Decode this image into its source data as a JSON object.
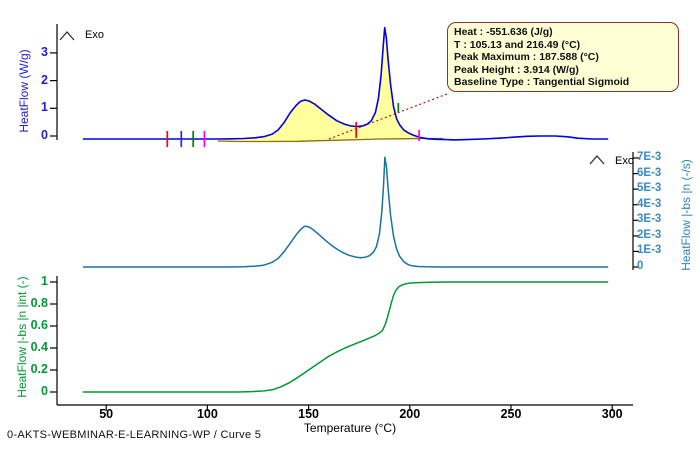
{
  "caption": "0-AKTS-WEBMINAR-E-LEARNING-WP / Curve 5",
  "exo": {
    "top": "Exo",
    "mid": "Exo"
  },
  "annotation": {
    "lines": [
      "Heat :  -551.636 (J/g)",
      "T : 105.13 and 216.49 (°C)",
      "Peak Maximum :  187.588 (°C)",
      "Peak Height :  3.914 (W/g)",
      "Baseline Type :  Tangential Sigmoid"
    ]
  },
  "colors": {
    "dsc_axis": "#2222cc",
    "rate_axis": "#3a8cc0",
    "integral_axis": "#009933",
    "x_axis": "#000000",
    "fill": "#ffff9e",
    "leader": "#bb0000",
    "annotation_bg": "#ffffd6",
    "annotation_border": "#8b2f2f"
  },
  "x_axis": {
    "label": "Temperature (°C)",
    "ticks": [
      50,
      100,
      150,
      200,
      250,
      300
    ],
    "range": [
      38.5,
      298
    ]
  },
  "chart_data": [
    {
      "type": "line",
      "name": "dsc-heatflow",
      "ylabel": "HeatFlow (W/g)",
      "color": "#0000e0",
      "ylim": [
        -0.45,
        4.05
      ],
      "yticks": [
        {
          "label": "0",
          "v": 0
        },
        {
          "label": "1",
          "v": 1
        },
        {
          "label": "2",
          "v": 2
        },
        {
          "label": "3",
          "v": 3
        }
      ],
      "peak": {
        "heat_J_per_g": -551.636,
        "t_onset": 105.13,
        "t_end": 216.49,
        "peak_maximum_C": 187.588,
        "peak_height_W_per_g": 3.914,
        "baseline_type": "Tangential Sigmoid"
      },
      "fill_region": {
        "from": 105.13,
        "to": 216.49
      },
      "baseline": {
        "color": "#8f7000",
        "points": [
          [
            105.13,
            -0.18
          ],
          [
            115,
            -0.2
          ],
          [
            130,
            -0.2
          ],
          [
            145,
            -0.19
          ],
          [
            155,
            -0.17
          ],
          [
            165,
            -0.15
          ],
          [
            175,
            -0.13
          ],
          [
            185,
            -0.11
          ],
          [
            195,
            -0.1
          ],
          [
            205,
            -0.09
          ],
          [
            216.49,
            -0.09
          ]
        ]
      },
      "markers": [
        {
          "t": 80.2,
          "v1": -0.4,
          "v2": 0.18,
          "color": "#ff0000"
        },
        {
          "t": 87.1,
          "v1": -0.4,
          "v2": 0.18,
          "color": "#2222ff"
        },
        {
          "t": 93.0,
          "v1": -0.4,
          "v2": 0.18,
          "color": "#008000"
        },
        {
          "t": 98.5,
          "v1": -0.4,
          "v2": 0.18,
          "color": "#ff00ff"
        },
        {
          "t": 173.5,
          "v1": -0.07,
          "v2": 0.51,
          "color": "#ff0000"
        },
        {
          "t": 204.6,
          "v1": -0.18,
          "v2": 0.22,
          "color": "#ff00ff"
        },
        {
          "t": 194.3,
          "v1": 0.87,
          "v2": 1.19,
          "color": "#008000"
        }
      ],
      "series": [
        [
          38.5,
          -0.11
        ],
        [
          60,
          -0.11
        ],
        [
          80,
          -0.11
        ],
        [
          95,
          -0.11
        ],
        [
          105,
          -0.11
        ],
        [
          112,
          -0.1
        ],
        [
          118,
          -0.09
        ],
        [
          124,
          -0.06
        ],
        [
          128,
          -0.02
        ],
        [
          132,
          0.07
        ],
        [
          135,
          0.22
        ],
        [
          138,
          0.5
        ],
        [
          141,
          0.85
        ],
        [
          144,
          1.12
        ],
        [
          146,
          1.25
        ],
        [
          148,
          1.3
        ],
        [
          150,
          1.27
        ],
        [
          153,
          1.15
        ],
        [
          156,
          0.98
        ],
        [
          160,
          0.75
        ],
        [
          164,
          0.55
        ],
        [
          168,
          0.42
        ],
        [
          171,
          0.36
        ],
        [
          174,
          0.34
        ],
        [
          177,
          0.37
        ],
        [
          179,
          0.43
        ],
        [
          181,
          0.55
        ],
        [
          183,
          0.85
        ],
        [
          184.5,
          1.35
        ],
        [
          185.8,
          2.2
        ],
        [
          186.8,
          3.2
        ],
        [
          187.6,
          3.91
        ],
        [
          188.4,
          3.55
        ],
        [
          189.3,
          2.75
        ],
        [
          190.5,
          1.85
        ],
        [
          192,
          1.05
        ],
        [
          193.5,
          0.62
        ],
        [
          195,
          0.4
        ],
        [
          197,
          0.22
        ],
        [
          199.5,
          0.1
        ],
        [
          202,
          0.02
        ],
        [
          205,
          -0.05
        ],
        [
          209,
          -0.1
        ],
        [
          213,
          -0.12
        ],
        [
          218,
          -0.13
        ],
        [
          222,
          -0.14
        ],
        [
          228,
          -0.13
        ],
        [
          236,
          -0.11
        ],
        [
          244,
          -0.08
        ],
        [
          252,
          -0.04
        ],
        [
          258,
          -0.01
        ],
        [
          264,
          0.0
        ],
        [
          272,
          0.0
        ],
        [
          278,
          -0.03
        ],
        [
          283,
          -0.08
        ],
        [
          290,
          -0.11
        ],
        [
          298,
          -0.11
        ]
      ]
    },
    {
      "type": "line",
      "name": "rate-normalized",
      "ylabel": "HeatFlow |-bs |n (-/s)",
      "color": "#17749e",
      "ylim": [
        -0.0004,
        0.0074
      ],
      "yticks": [
        {
          "label": "0",
          "v": 0
        },
        {
          "label": "1E-3",
          "v": 0.001
        },
        {
          "label": "2E-3",
          "v": 0.002
        },
        {
          "label": "3E-3",
          "v": 0.003
        },
        {
          "label": "4E-3",
          "v": 0.004
        },
        {
          "label": "5E-3",
          "v": 0.005
        },
        {
          "label": "6E-3",
          "v": 0.006
        },
        {
          "label": "7E-3",
          "v": 0.007
        }
      ],
      "series_scale": 0.001,
      "series": [
        [
          38.5,
          0.0
        ],
        [
          100,
          0.0
        ],
        [
          110,
          0.0
        ],
        [
          118,
          0.02
        ],
        [
          124,
          0.06
        ],
        [
          128,
          0.12
        ],
        [
          132,
          0.3
        ],
        [
          135,
          0.55
        ],
        [
          138,
          1.0
        ],
        [
          141,
          1.55
        ],
        [
          144,
          2.1
        ],
        [
          146,
          2.4
        ],
        [
          148,
          2.62
        ],
        [
          150,
          2.58
        ],
        [
          152,
          2.42
        ],
        [
          155,
          2.1
        ],
        [
          158,
          1.75
        ],
        [
          161,
          1.42
        ],
        [
          164,
          1.15
        ],
        [
          167,
          0.92
        ],
        [
          170,
          0.75
        ],
        [
          173,
          0.64
        ],
        [
          175.5,
          0.6
        ],
        [
          178,
          0.63
        ],
        [
          180,
          0.72
        ],
        [
          182,
          0.95
        ],
        [
          183.5,
          1.3
        ],
        [
          185,
          2.1
        ],
        [
          186.2,
          3.6
        ],
        [
          187,
          5.2
        ],
        [
          187.7,
          7.05
        ],
        [
          188.5,
          6.4
        ],
        [
          189.4,
          4.9
        ],
        [
          190.5,
          3.3
        ],
        [
          192,
          1.95
        ],
        [
          193.5,
          1.15
        ],
        [
          195,
          0.68
        ],
        [
          197,
          0.35
        ],
        [
          199,
          0.17
        ],
        [
          201,
          0.08
        ],
        [
          204,
          0.03
        ],
        [
          208,
          0.01
        ],
        [
          215,
          0.0
        ],
        [
          298,
          0.0
        ]
      ]
    },
    {
      "type": "line",
      "name": "conversion-integral",
      "ylabel": "HeatFlow |-bs |n |int (-)",
      "color": "#009933",
      "ylim": [
        -0.05,
        1.08
      ],
      "yticks": [
        {
          "label": "0",
          "v": 0
        },
        {
          "label": "0.2",
          "v": 0.2
        },
        {
          "label": "0.4",
          "v": 0.4
        },
        {
          "label": "0.6",
          "v": 0.6
        },
        {
          "label": "0.8",
          "v": 0.8
        },
        {
          "label": "1",
          "v": 1
        }
      ],
      "series": [
        [
          38.5,
          0.0
        ],
        [
          115,
          0.0
        ],
        [
          122,
          0.004
        ],
        [
          128,
          0.01
        ],
        [
          132,
          0.02
        ],
        [
          136,
          0.045
        ],
        [
          140,
          0.08
        ],
        [
          144,
          0.125
        ],
        [
          148,
          0.175
        ],
        [
          152,
          0.225
        ],
        [
          156,
          0.275
        ],
        [
          160,
          0.325
        ],
        [
          164,
          0.365
        ],
        [
          168,
          0.4
        ],
        [
          172,
          0.43
        ],
        [
          176,
          0.46
        ],
        [
          180,
          0.49
        ],
        [
          183,
          0.515
        ],
        [
          185,
          0.535
        ],
        [
          186.5,
          0.56
        ],
        [
          188,
          0.62
        ],
        [
          189,
          0.68
        ],
        [
          190,
          0.75
        ],
        [
          191,
          0.82
        ],
        [
          192,
          0.88
        ],
        [
          193,
          0.92
        ],
        [
          194.5,
          0.955
        ],
        [
          196,
          0.972
        ],
        [
          198,
          0.984
        ],
        [
          200,
          0.99
        ],
        [
          204,
          0.995
        ],
        [
          210,
          0.998
        ],
        [
          218,
          1.0
        ],
        [
          298,
          1.0
        ]
      ]
    }
  ]
}
